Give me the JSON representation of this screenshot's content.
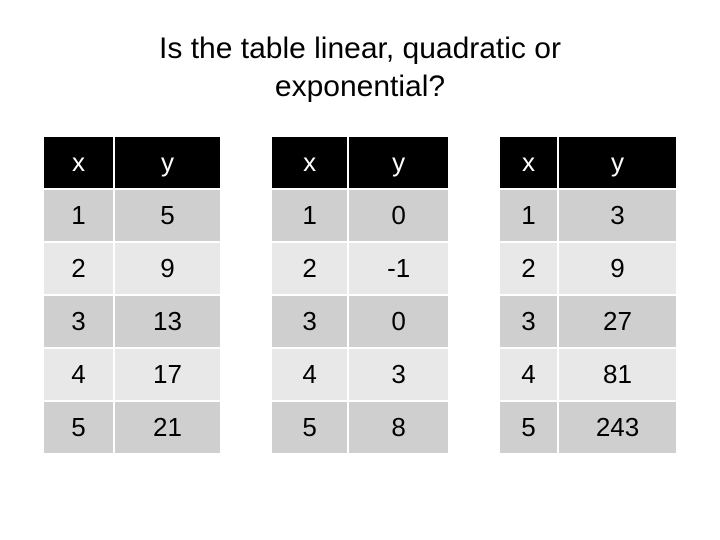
{
  "title": "Is the table linear, quadratic or exponential?",
  "tables": [
    {
      "headers": {
        "x": "x",
        "y": "y"
      },
      "rows": [
        {
          "x": "1",
          "y": "5"
        },
        {
          "x": "2",
          "y": "9"
        },
        {
          "x": "3",
          "y": "13"
        },
        {
          "x": "4",
          "y": "17"
        },
        {
          "x": "5",
          "y": "21"
        }
      ]
    },
    {
      "headers": {
        "x": "x",
        "y": "y"
      },
      "rows": [
        {
          "x": "1",
          "y": "0"
        },
        {
          "x": "2",
          "y": "-1"
        },
        {
          "x": "3",
          "y": "0"
        },
        {
          "x": "4",
          "y": "3"
        },
        {
          "x": "5",
          "y": "8"
        }
      ]
    },
    {
      "headers": {
        "x": "x",
        "y": "y"
      },
      "rows": [
        {
          "x": "1",
          "y": "3"
        },
        {
          "x": "2",
          "y": "9"
        },
        {
          "x": "3",
          "y": "27"
        },
        {
          "x": "4",
          "y": "81"
        },
        {
          "x": "5",
          "y": "243"
        }
      ]
    }
  ],
  "style": {
    "header_bg": "#000000",
    "header_fg": "#ffffff",
    "row_alt_a": "#cfcfcf",
    "row_alt_b": "#e8e8e8",
    "cell_border": "#ffffff",
    "font_size_title": 30,
    "font_size_cell": 26
  }
}
